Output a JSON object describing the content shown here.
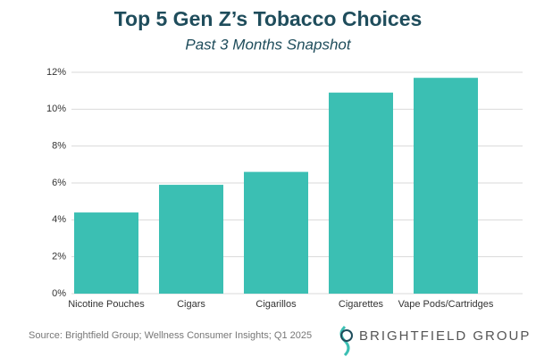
{
  "chart_data": {
    "type": "bar",
    "title": "Top 5 Gen Z’s Tobacco Choices",
    "subtitle": "Past 3 Months Snapshot",
    "categories": [
      "Nicotine Pouches",
      "Cigars",
      "Cigarillos",
      "Cigarettes",
      "Vape Pods/Cartridges"
    ],
    "values": [
      4.4,
      5.9,
      6.6,
      10.9,
      11.7
    ],
    "color": "#3bbfb3",
    "ylim": [
      0,
      12
    ],
    "yticks": [
      {
        "value": 0,
        "label": "0%"
      },
      {
        "value": 2,
        "label": "2%"
      },
      {
        "value": 4,
        "label": "4%"
      },
      {
        "value": 6,
        "label": "6%"
      },
      {
        "value": 8,
        "label": "8%"
      },
      {
        "value": 10,
        "label": "10%"
      },
      {
        "value": 12,
        "label": "12%"
      }
    ],
    "grid": true,
    "source": "Source: Brightfield Group; Wellness Consumer Insights;  Q1 2025",
    "brand": "BRIGHTFIELD GROUP"
  }
}
